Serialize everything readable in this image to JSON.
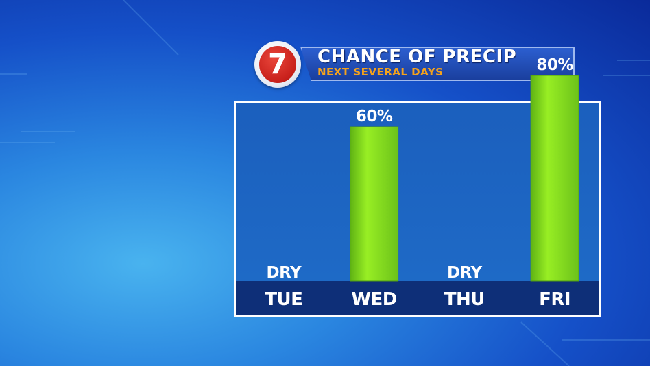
{
  "logo": {
    "text": "7"
  },
  "title": {
    "main": "CHANCE OF PRECIP",
    "sub": "NEXT SEVERAL DAYS"
  },
  "chart_data": {
    "type": "bar",
    "categories": [
      "TUE",
      "WED",
      "THU",
      "FRI"
    ],
    "values": [
      0,
      60,
      0,
      80
    ],
    "labels": [
      "DRY",
      "60%",
      "DRY",
      "80%"
    ],
    "ylim": [
      0,
      100
    ],
    "bar_color": "#86e01c",
    "grid": false
  },
  "colors": {
    "panel": "#1b5fbd",
    "day_strip": "#0e2f78",
    "title_sub": "#f4a21c",
    "logo_red": "#c8201b"
  }
}
